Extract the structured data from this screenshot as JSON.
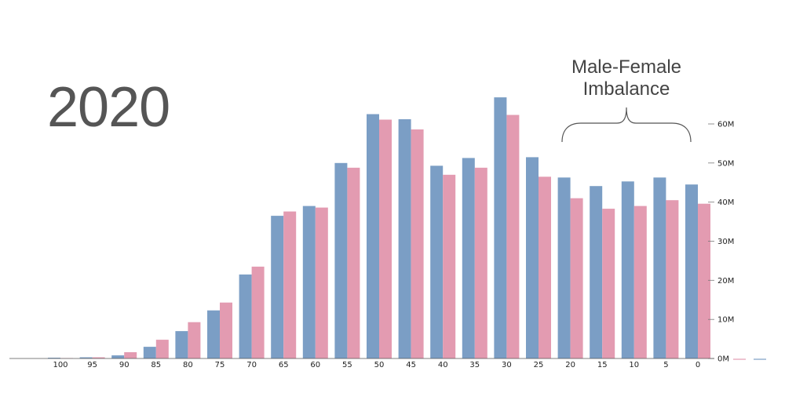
{
  "year_label": "2020",
  "annotation": {
    "line1": "Male-Female",
    "line2": "Imbalance"
  },
  "colors": {
    "male": "#7b9ec5",
    "female": "#e39bb1",
    "text": "#555555"
  },
  "chart_data": {
    "type": "bar",
    "title": "2020",
    "xlabel": "",
    "ylabel": "",
    "grid": false,
    "ylim": [
      0,
      60000000
    ],
    "y_tick_values": [
      0,
      10000000,
      20000000,
      30000000,
      40000000,
      50000000,
      60000000
    ],
    "y_tick_labels": [
      "0M",
      "10M",
      "20M",
      "30M",
      "40M",
      "50M",
      "60M"
    ],
    "categories": [
      "100",
      "95",
      "90",
      "85",
      "80",
      "75",
      "70",
      "65",
      "60",
      "55",
      "50",
      "45",
      "40",
      "35",
      "30",
      "25",
      "20",
      "15",
      "10",
      "5",
      "0"
    ],
    "series": [
      {
        "name": "",
        "color": "#7b9ec5",
        "values": [
          0.2,
          0.3,
          0.8,
          3.0,
          7.0,
          12.3,
          21.5,
          36.5,
          39.0,
          50.0,
          62.5,
          61.2,
          49.3,
          51.3,
          66.8,
          51.5,
          46.3,
          44.1,
          45.3,
          46.3,
          44.5
        ]
      },
      {
        "name": "",
        "color": "#e39bb1",
        "values": [
          0.1,
          0.3,
          1.6,
          4.8,
          9.3,
          14.3,
          23.5,
          37.6,
          38.6,
          48.8,
          61.1,
          58.6,
          47.0,
          48.8,
          62.3,
          46.5,
          41.0,
          38.3,
          39.0,
          40.5,
          39.6
        ]
      }
    ],
    "annotation": "Male-Female Imbalance"
  }
}
